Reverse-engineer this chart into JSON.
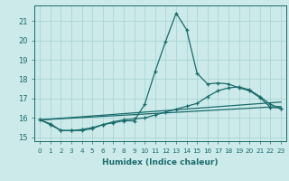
{
  "xlabel": "Humidex (Indice chaleur)",
  "x": [
    0,
    1,
    2,
    3,
    4,
    5,
    6,
    7,
    8,
    9,
    10,
    11,
    12,
    13,
    14,
    15,
    16,
    17,
    18,
    19,
    20,
    21,
    22,
    23
  ],
  "line1": [
    15.9,
    15.7,
    15.35,
    15.35,
    15.35,
    15.45,
    15.65,
    15.75,
    15.85,
    15.85,
    16.7,
    18.4,
    19.95,
    21.4,
    20.55,
    18.3,
    17.75,
    17.8,
    17.75,
    17.55,
    17.4,
    17.05,
    16.55,
    16.5
  ],
  "line2": [
    15.9,
    15.65,
    15.35,
    15.35,
    15.4,
    15.5,
    15.65,
    15.8,
    15.9,
    15.95,
    16.0,
    16.15,
    16.3,
    16.45,
    16.6,
    16.75,
    17.1,
    17.4,
    17.55,
    17.6,
    17.45,
    17.1,
    16.7,
    16.5
  ],
  "line3": [
    15.9,
    15.94,
    15.98,
    16.02,
    16.06,
    16.1,
    16.14,
    16.18,
    16.22,
    16.26,
    16.3,
    16.34,
    16.38,
    16.42,
    16.46,
    16.5,
    16.54,
    16.58,
    16.62,
    16.66,
    16.7,
    16.74,
    16.78,
    16.82
  ],
  "line4": [
    15.9,
    15.93,
    15.96,
    15.99,
    16.02,
    16.05,
    16.08,
    16.11,
    16.14,
    16.17,
    16.2,
    16.23,
    16.26,
    16.29,
    16.32,
    16.35,
    16.38,
    16.41,
    16.44,
    16.47,
    16.5,
    16.53,
    16.56,
    16.59
  ],
  "color": "#1a6b6b",
  "bg_color": "#cceaea",
  "grid_color": "#aad4d4",
  "ylim": [
    14.8,
    21.8
  ],
  "xlim": [
    -0.5,
    23.5
  ],
  "yticks": [
    15,
    16,
    17,
    18,
    19,
    20,
    21
  ],
  "xticks": [
    0,
    1,
    2,
    3,
    4,
    5,
    6,
    7,
    8,
    9,
    10,
    11,
    12,
    13,
    14,
    15,
    16,
    17,
    18,
    19,
    20,
    21,
    22,
    23
  ]
}
